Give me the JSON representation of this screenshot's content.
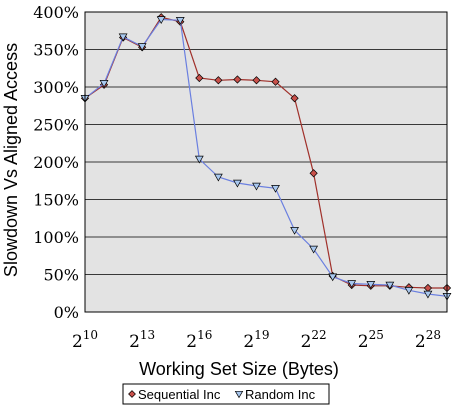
{
  "chart_data": {
    "type": "line",
    "title": "",
    "xlabel": "Working Set Size (Bytes)",
    "ylabel": "Slowdown Vs Aligned Access",
    "x_scale": "log2",
    "x_tick_exponents": [
      10,
      13,
      16,
      19,
      22,
      25,
      28
    ],
    "x_tick_base": "2",
    "xlim_exponent": [
      10,
      29
    ],
    "y_ticks": [
      0,
      50,
      100,
      150,
      200,
      250,
      300,
      350,
      400
    ],
    "y_tick_labels": [
      "0%",
      "50%",
      "100%",
      "150%",
      "200%",
      "250%",
      "300%",
      "350%",
      "400%"
    ],
    "ylim": [
      0,
      400
    ],
    "y_unit": "%",
    "grid": "horizontal",
    "legend_position": "bottom",
    "x_exponents": [
      10,
      11,
      12,
      13,
      14,
      15,
      16,
      17,
      18,
      19,
      20,
      21,
      22,
      23,
      24,
      25,
      26,
      27,
      28,
      29
    ],
    "series": [
      {
        "name": "Sequential Inc",
        "marker": "diamond",
        "color": "#a0302a",
        "marker_fill": "#c8504a",
        "values": [
          285,
          303,
          366,
          353,
          393,
          387,
          312,
          309,
          310,
          309,
          307,
          285,
          185,
          48,
          36,
          35,
          35,
          33,
          32,
          32
        ]
      },
      {
        "name": "Random Inc",
        "marker": "triangle-down",
        "color": "#6a7fe0",
        "marker_fill": "#a9c8ef",
        "values": [
          285,
          305,
          367,
          354,
          390,
          389,
          204,
          180,
          172,
          168,
          165,
          109,
          84,
          47,
          38,
          37,
          36,
          29,
          24,
          21
        ]
      }
    ]
  }
}
